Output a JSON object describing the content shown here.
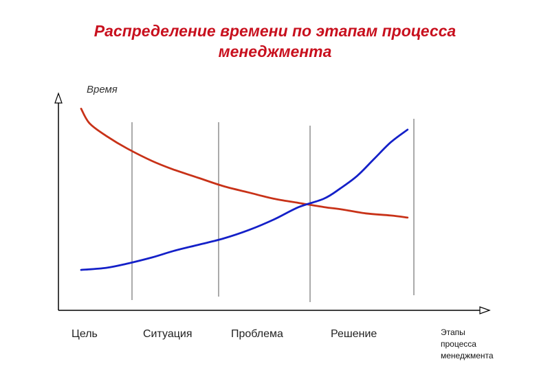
{
  "title": {
    "line1": "Распределение времени по этапам процесса",
    "line2": "менеджмента"
  },
  "chart_data": {
    "type": "line",
    "ylabel": "Время",
    "xlabel_lines": [
      "Этапы",
      "процесса",
      "менеджмента"
    ],
    "stages": [
      "Цель",
      "Ситуация",
      "Проблема",
      "Решение"
    ],
    "axis_ticks": false,
    "grid": false,
    "legend": "none",
    "xlim": [
      0,
      4
    ],
    "ylim": [
      0,
      100
    ],
    "series": [
      {
        "color": "#c83218",
        "x": [
          0.0,
          0.1,
          0.3,
          0.55,
          0.85,
          1.1,
          1.4,
          1.7,
          2.0,
          2.3,
          2.6,
          2.9,
          3.1,
          3.4,
          3.7,
          3.9
        ],
        "y": [
          94,
          87,
          81,
          75,
          69,
          65,
          61,
          57,
          54,
          51,
          49,
          47,
          46,
          44,
          43,
          42
        ]
      },
      {
        "color": "#1420c8",
        "x": [
          0.0,
          0.3,
          0.55,
          0.85,
          1.1,
          1.4,
          1.7,
          2.0,
          2.3,
          2.6,
          2.9,
          3.1,
          3.3,
          3.5,
          3.7,
          3.9
        ],
        "y": [
          17,
          18,
          20,
          23,
          26,
          29,
          32,
          36,
          41,
          47,
          51,
          56,
          62,
          70,
          78,
          84
        ]
      }
    ]
  }
}
